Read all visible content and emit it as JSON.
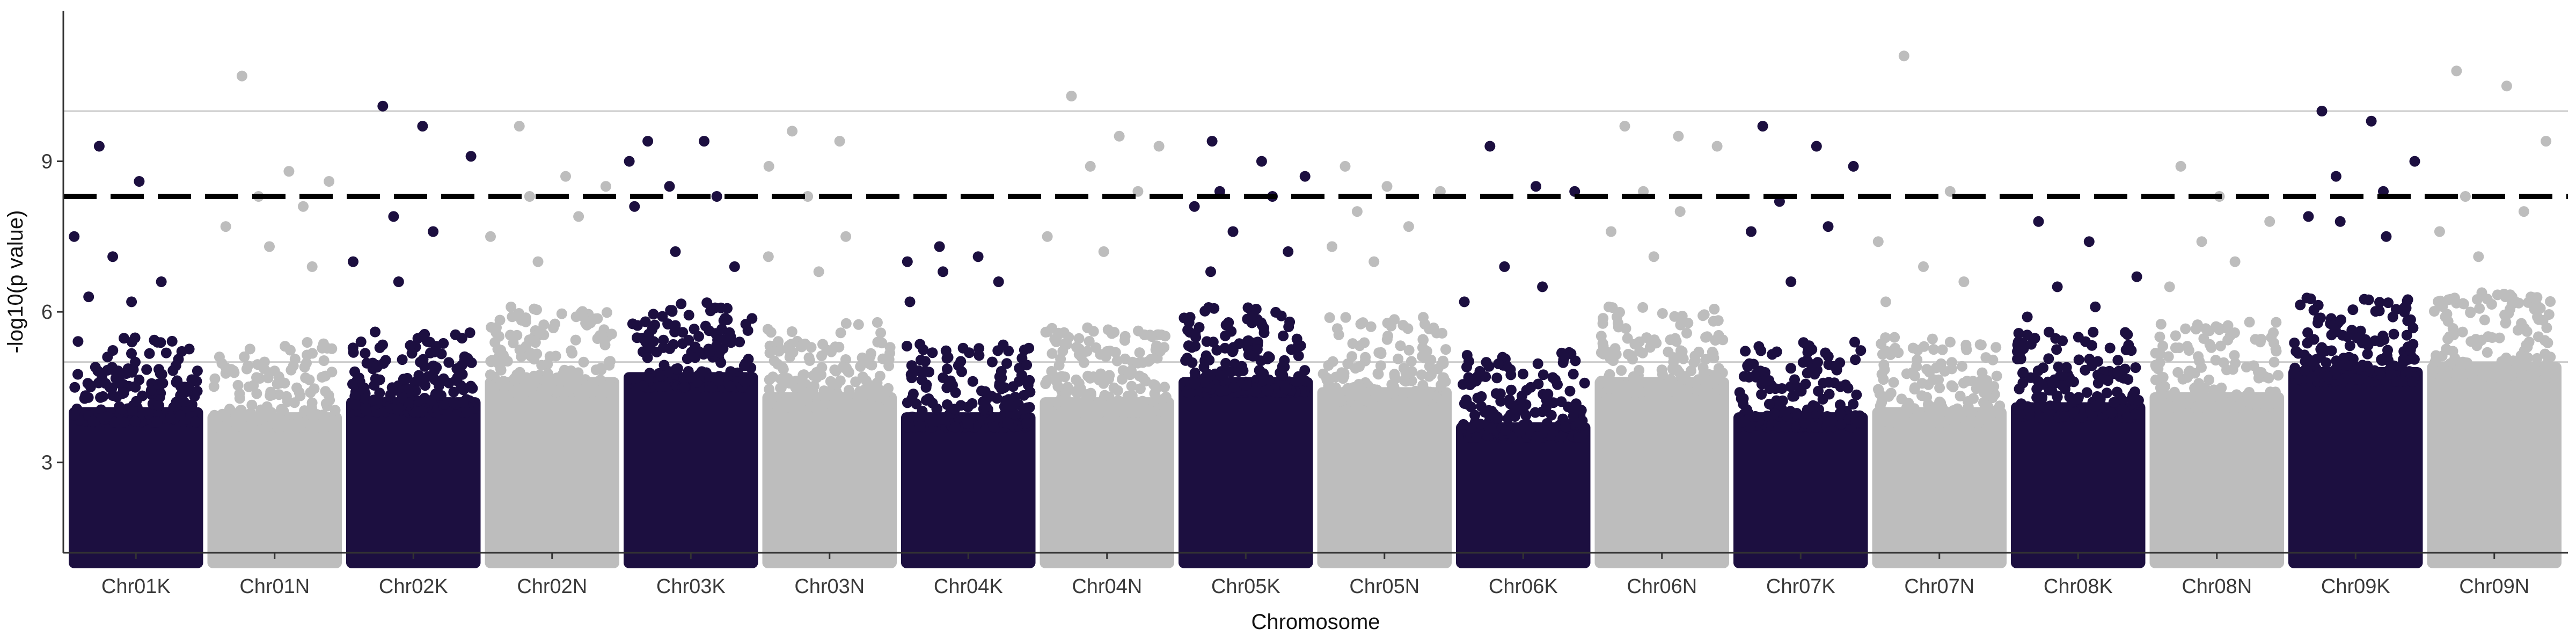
{
  "chart_data": {
    "type": "scatter",
    "subtype": "manhattan",
    "title": "",
    "xlabel": "Chromosome",
    "ylabel": "-log10(p value)",
    "ylim": [
      1.2,
      12
    ],
    "yticks": [
      3,
      6,
      9
    ],
    "grid": "horizontal reference lines only",
    "legend": "none",
    "threshold_line": {
      "y": 8.3,
      "style": "dashed",
      "color": "#000000"
    },
    "reference_lines": [
      {
        "y": 10.0,
        "color": "#cccccc"
      },
      {
        "y": 5.0,
        "color": "#cccccc"
      }
    ],
    "colors": {
      "odd": "#1c0f40",
      "even": "#bdbdbd"
    },
    "points_minimum": 1.0,
    "chromosomes": [
      {
        "name": "Chr01K",
        "top_points": [
          9.3,
          8.6,
          7.5,
          7.1,
          6.6,
          6.3,
          6.2
        ],
        "dense_to": 4.7
      },
      {
        "name": "Chr01N",
        "top_points": [
          10.7,
          8.8,
          8.6,
          8.3,
          8.1,
          7.7,
          7.3,
          6.9
        ],
        "dense_to": 4.6
      },
      {
        "name": "Chr02K",
        "top_points": [
          10.1,
          9.7,
          9.1,
          7.9,
          7.6,
          7.0,
          6.6
        ],
        "dense_to": 4.9
      },
      {
        "name": "Chr02N",
        "top_points": [
          9.7,
          8.7,
          8.5,
          8.3,
          7.9,
          7.5,
          7.0
        ],
        "dense_to": 5.3
      },
      {
        "name": "Chr03K",
        "top_points": [
          9.4,
          9.4,
          9.0,
          8.5,
          8.3,
          8.1,
          7.2,
          6.9
        ],
        "dense_to": 5.4
      },
      {
        "name": "Chr03N",
        "top_points": [
          9.6,
          9.4,
          8.9,
          8.3,
          7.5,
          7.1,
          6.8
        ],
        "dense_to": 5.0
      },
      {
        "name": "Chr04K",
        "top_points": [
          7.3,
          7.1,
          7.0,
          6.8,
          6.6,
          6.2
        ],
        "dense_to": 4.6
      },
      {
        "name": "Chr04N",
        "top_points": [
          10.3,
          9.5,
          9.3,
          8.9,
          8.4,
          7.5,
          7.2
        ],
        "dense_to": 4.9
      },
      {
        "name": "Chr05K",
        "top_points": [
          9.4,
          9.0,
          8.7,
          8.4,
          8.3,
          8.1,
          7.6,
          7.2,
          6.8
        ],
        "dense_to": 5.3
      },
      {
        "name": "Chr05N",
        "top_points": [
          8.9,
          8.5,
          8.4,
          8.0,
          7.7,
          7.3,
          7.0
        ],
        "dense_to": 5.1
      },
      {
        "name": "Chr06K",
        "top_points": [
          9.3,
          8.5,
          8.4,
          6.9,
          6.5,
          6.2
        ],
        "dense_to": 4.4
      },
      {
        "name": "Chr06N",
        "top_points": [
          9.7,
          9.5,
          9.3,
          8.4,
          8.0,
          7.6,
          7.1
        ],
        "dense_to": 5.3
      },
      {
        "name": "Chr07K",
        "top_points": [
          9.7,
          9.3,
          8.9,
          8.2,
          7.7,
          7.6,
          6.6
        ],
        "dense_to": 4.6
      },
      {
        "name": "Chr07N",
        "top_points": [
          11.1,
          8.4,
          7.4,
          6.9,
          6.6,
          6.2
        ],
        "dense_to": 4.7
      },
      {
        "name": "Chr08K",
        "top_points": [
          7.8,
          7.4,
          6.7,
          6.5,
          6.1,
          5.9
        ],
        "dense_to": 4.8
      },
      {
        "name": "Chr08N",
        "top_points": [
          8.9,
          8.3,
          7.8,
          7.4,
          7.0,
          6.5
        ],
        "dense_to": 5.0
      },
      {
        "name": "Chr09K",
        "top_points": [
          10.0,
          9.8,
          9.0,
          8.7,
          8.4,
          7.9,
          7.8,
          7.5
        ],
        "dense_to": 5.5
      },
      {
        "name": "Chr09N",
        "top_points": [
          10.8,
          10.5,
          9.4,
          8.3,
          8.0,
          7.6,
          7.1
        ],
        "dense_to": 5.6
      }
    ]
  }
}
